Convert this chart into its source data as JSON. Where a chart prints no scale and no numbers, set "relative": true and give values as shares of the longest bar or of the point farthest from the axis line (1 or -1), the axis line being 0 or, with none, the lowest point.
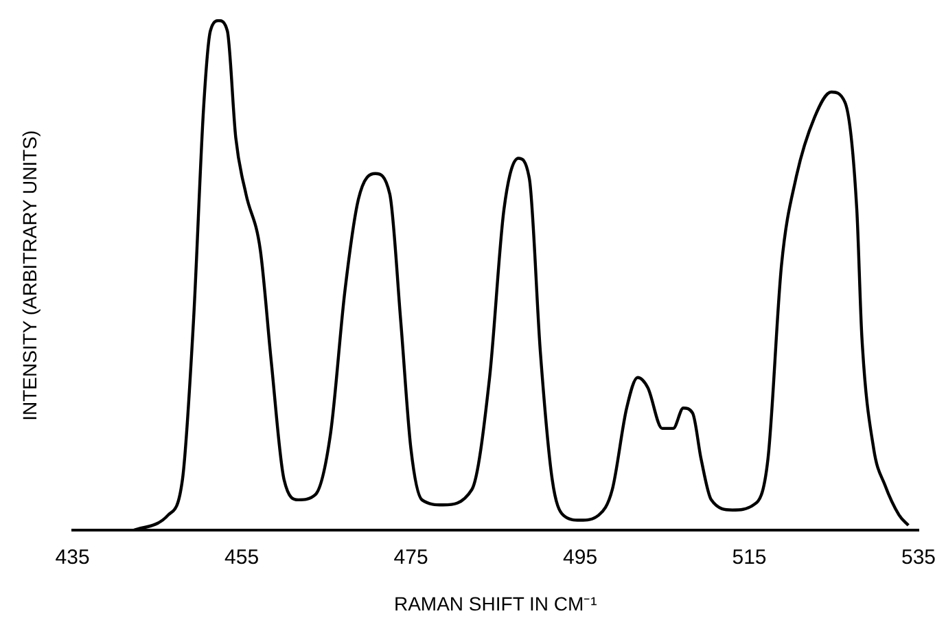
{
  "chart_data": {
    "type": "line",
    "relative": true,
    "xlabel": "RAMAN SHIFT IN CM⁻¹",
    "ylabel": "INTENSITY (ARBITRARY UNITS)",
    "xlim": [
      435,
      535
    ],
    "xticks": [
      435,
      455,
      475,
      495,
      515,
      535
    ],
    "grid": false,
    "legend": false,
    "marker": "none",
    "line_style": "solid",
    "series": [
      {
        "color": "#000000",
        "x": [
          442.2,
          446.3,
          448,
          449.3,
          450.5,
          451.3,
          452.3,
          453.3,
          454.3,
          455.5,
          457.2,
          458.5,
          460,
          461.7,
          463.7,
          465.5,
          467.2,
          468.8,
          470.8,
          472.5,
          473.8,
          475,
          476.3,
          478.8,
          482.2,
          484.3,
          486,
          487.7,
          489,
          490.3,
          491.7,
          493,
          495,
          497.2,
          498.8,
          500.5,
          501.8,
          503,
          504.7,
          506,
          507.2,
          508.3,
          509.3,
          510.5,
          513,
          515.5,
          517.2,
          518.8,
          520.5,
          522.7,
          524.7,
          526.3,
          527.7,
          528.3,
          529.7,
          531,
          532.7,
          533.8
        ],
        "values": [
          0,
          0.03,
          0.1,
          0.41,
          0.83,
          0.98,
          1,
          0.98,
          0.77,
          0.66,
          0.55,
          0.33,
          0.1,
          0.06,
          0.07,
          0.19,
          0.47,
          0.65,
          0.7,
          0.66,
          0.41,
          0.16,
          0.06,
          0.05,
          0.08,
          0.3,
          0.63,
          0.73,
          0.69,
          0.35,
          0.1,
          0.03,
          0.02,
          0.03,
          0.08,
          0.24,
          0.3,
          0.28,
          0.2,
          0.2,
          0.24,
          0.23,
          0.14,
          0.06,
          0.04,
          0.05,
          0.14,
          0.52,
          0.69,
          0.81,
          0.86,
          0.84,
          0.63,
          0.38,
          0.16,
          0.09,
          0.03,
          0.01
        ]
      }
    ]
  }
}
